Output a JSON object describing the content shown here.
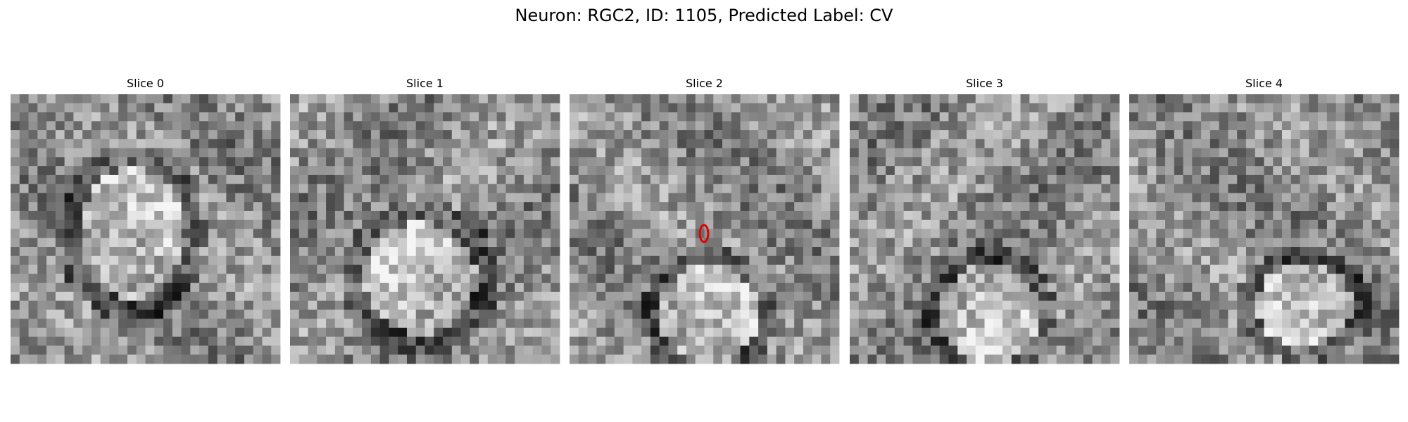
{
  "title": "Neuron: RGC2, ID: 1105, Predicted Label: CV",
  "panels": [
    {
      "title": "Slice 0"
    },
    {
      "title": "Slice 1"
    },
    {
      "title": "Slice 2"
    },
    {
      "title": "Slice 3"
    },
    {
      "title": "Slice 4"
    }
  ]
}
